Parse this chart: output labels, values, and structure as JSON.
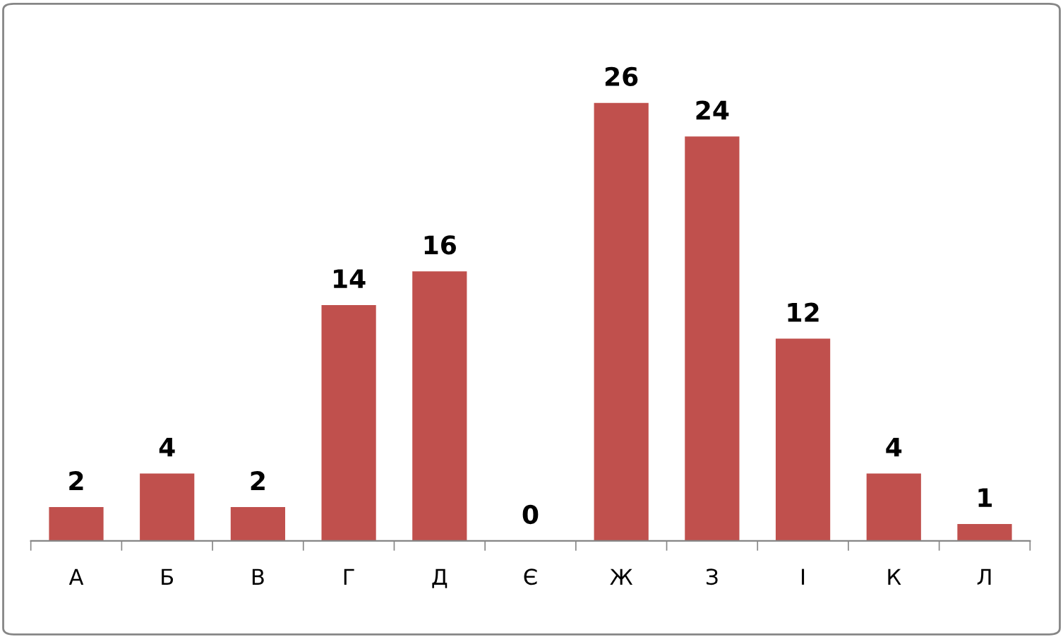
{
  "chart_data": {
    "type": "bar",
    "categories": [
      "А",
      "Б",
      "В",
      "Г",
      "Д",
      "Є",
      "Ж",
      "З",
      "І",
      "К",
      "Л"
    ],
    "values": [
      2,
      4,
      2,
      14,
      16,
      0,
      26,
      24,
      12,
      4,
      1
    ],
    "color": "#c0504d",
    "data_labels": true
  }
}
